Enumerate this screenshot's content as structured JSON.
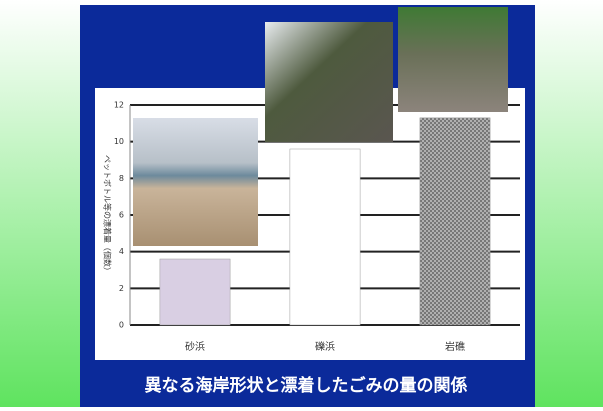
{
  "chart_data": {
    "type": "bar",
    "title": "異なる海岸形状と漂着したごみの量の関係",
    "y_label": "ペットボトル等の漂着量（個数）",
    "categories": [
      "砂浜",
      "礫浜",
      "岩礁"
    ],
    "values": [
      3.6,
      9.6,
      11.3
    ],
    "colors": [
      "#d9cfe3",
      "#ffffff",
      "#9a9a9a"
    ],
    "ylim": [
      0,
      12
    ],
    "yticks": [
      0,
      2,
      4,
      6,
      8,
      10,
      12
    ],
    "grid": true
  }
}
